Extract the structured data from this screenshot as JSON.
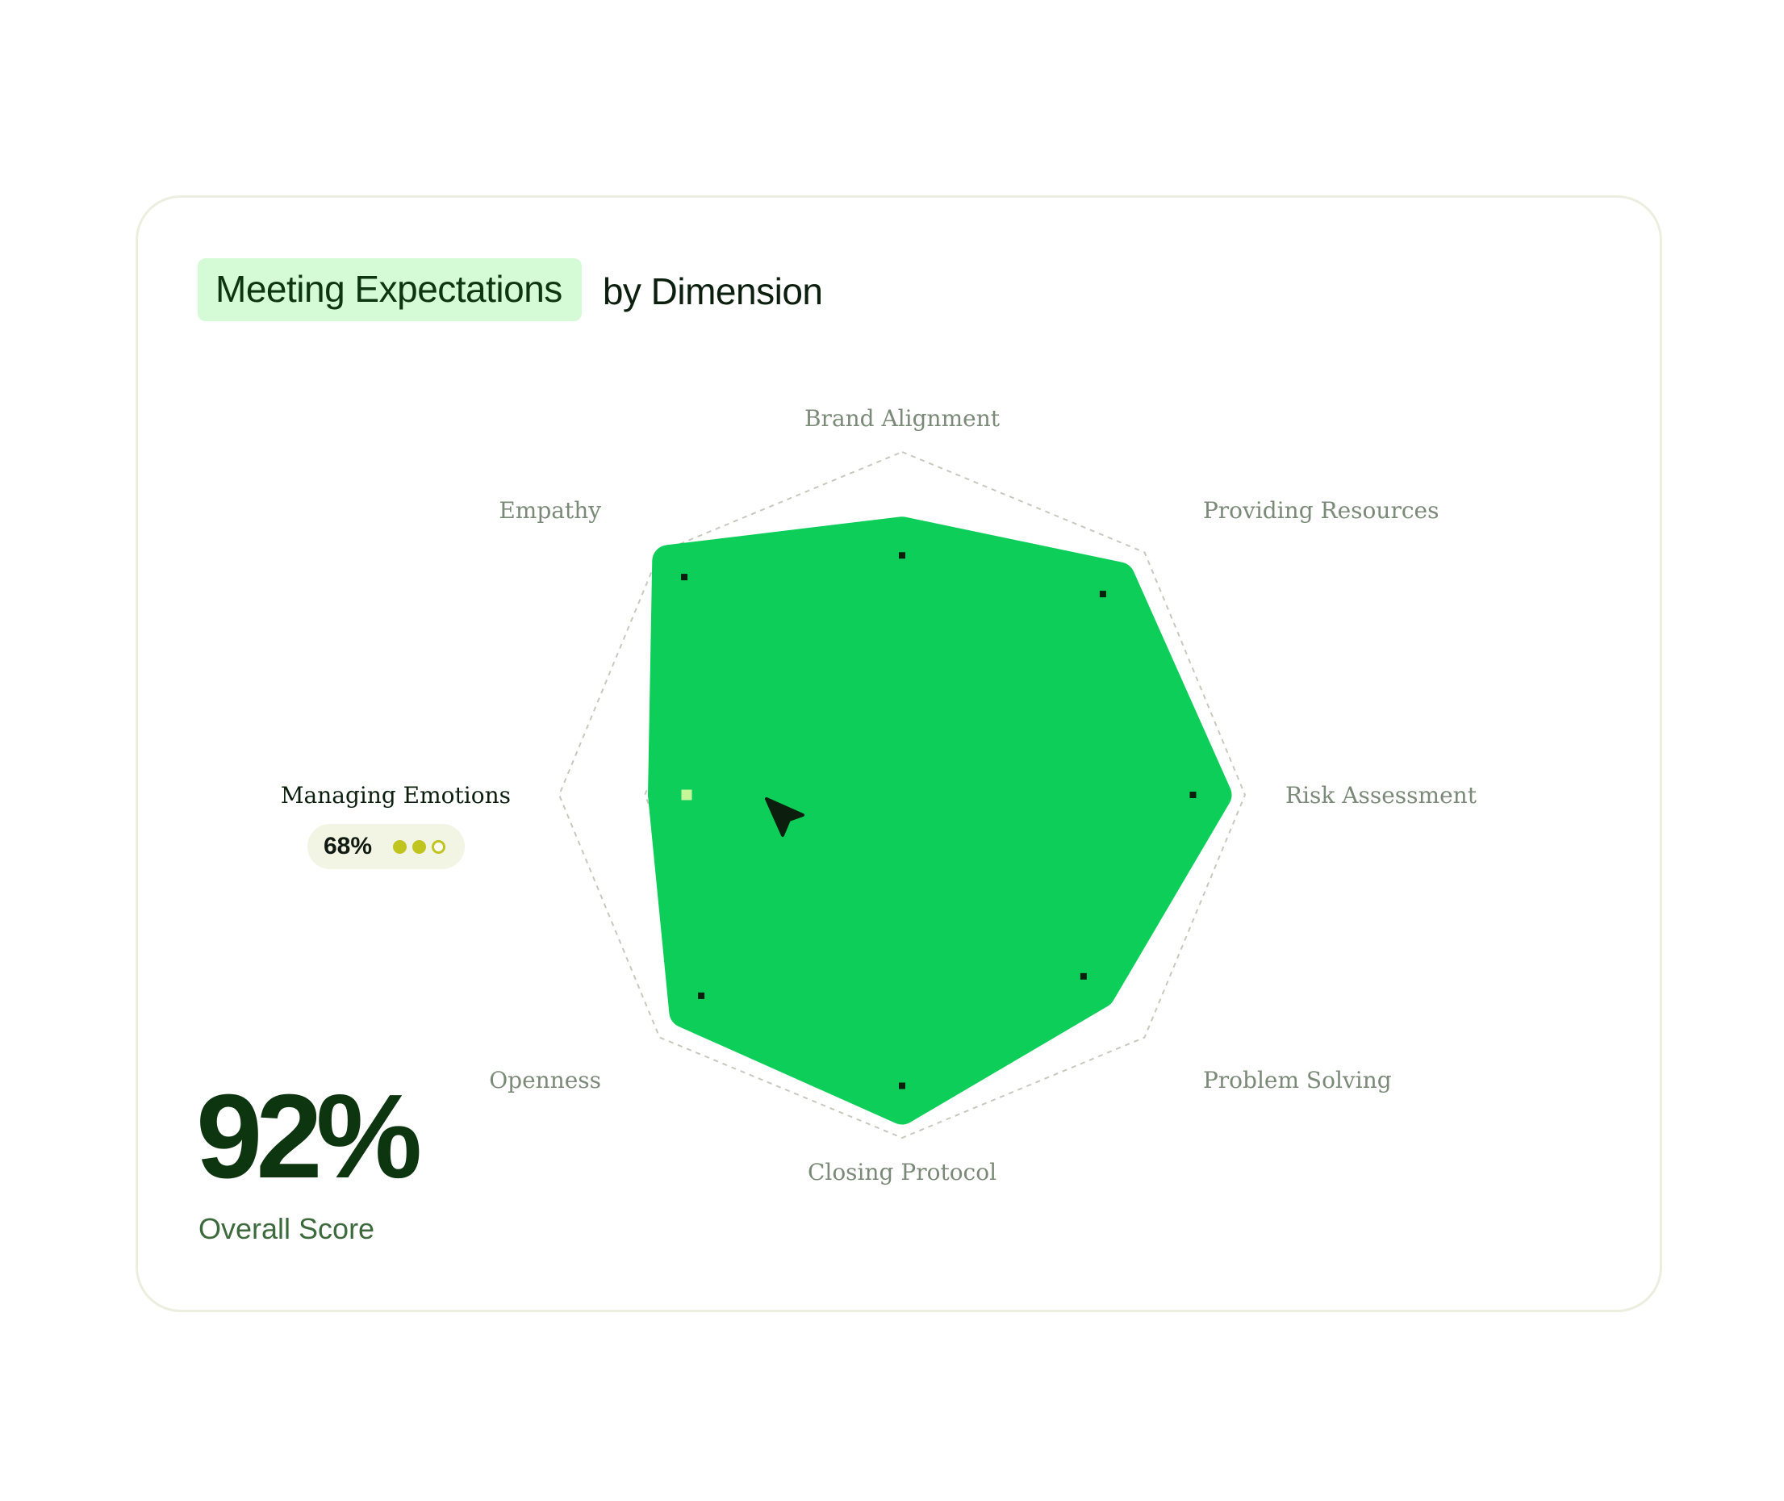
{
  "header": {
    "highlight": "Meeting Expectations",
    "suffix": "by Dimension"
  },
  "tooltip": {
    "dimension": "Managing Emotions",
    "value": "68%",
    "dots": [
      "filled",
      "filled",
      "empty"
    ]
  },
  "overall": {
    "value": "92%",
    "label": "Overall Score"
  },
  "colors": {
    "fill": "#0cce58",
    "highlight_bg": "#d4fad6",
    "dark_green": "#0c3510",
    "grid": "#c8c8c0",
    "dot_yellow": "#bfc41e",
    "active_point": "#c6f59a"
  },
  "chart_data": {
    "type": "radar",
    "title": "Meeting Expectations by Dimension",
    "categories": [
      "Brand Alignment",
      "Providing Resources",
      "Risk Assessment",
      "Problem Solving",
      "Closing Protocol",
      "Openness",
      "Managing Emotions",
      "Empathy"
    ],
    "series": [
      {
        "values": [
          0.75,
          0.88,
          0.9,
          0.8,
          0.9,
          0.88,
          0.68,
          0.95
        ]
      }
    ],
    "grid_levels": [
      0.5,
      0.75,
      1.0
    ],
    "highlighted": "Managing Emotions",
    "grid": true,
    "legend": "none"
  }
}
